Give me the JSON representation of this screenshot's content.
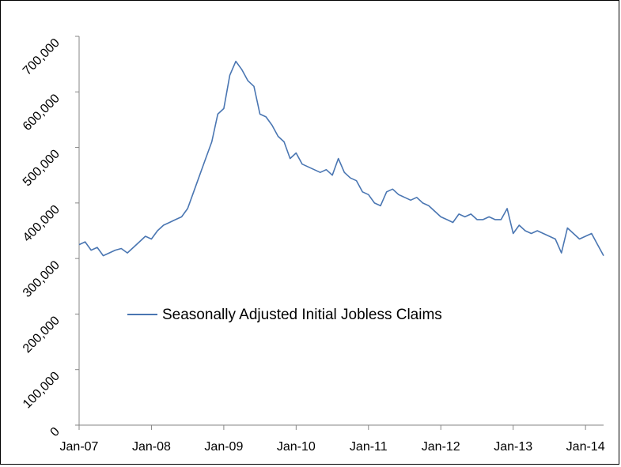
{
  "chart_data": {
    "type": "line",
    "title": "",
    "xlabel": "",
    "ylabel": "",
    "ylim": [
      0,
      700000
    ],
    "xlim": [
      "2007-01",
      "2014-04"
    ],
    "y_ticks": [
      0,
      100000,
      200000,
      300000,
      400000,
      500000,
      600000,
      700000
    ],
    "y_tick_labels": [
      "0",
      "100,000",
      "200,000",
      "300,000",
      "400,000",
      "500,000",
      "600,000",
      "700,000"
    ],
    "x_tick_labels": [
      "Jan-07",
      "Jan-08",
      "Jan-09",
      "Jan-10",
      "Jan-11",
      "Jan-12",
      "Jan-13",
      "Jan-14"
    ],
    "grid": false,
    "legend_position": "center-left",
    "series": [
      {
        "name": "Seasonally Adjusted Initial Jobless Claims",
        "color": "#4a76b2",
        "x": [
          "2007-01",
          "2007-02",
          "2007-03",
          "2007-04",
          "2007-05",
          "2007-06",
          "2007-07",
          "2007-08",
          "2007-09",
          "2007-10",
          "2007-11",
          "2007-12",
          "2008-01",
          "2008-02",
          "2008-03",
          "2008-04",
          "2008-05",
          "2008-06",
          "2008-07",
          "2008-08",
          "2008-09",
          "2008-10",
          "2008-11",
          "2008-12",
          "2009-01",
          "2009-02",
          "2009-03",
          "2009-04",
          "2009-05",
          "2009-06",
          "2009-07",
          "2009-08",
          "2009-09",
          "2009-10",
          "2009-11",
          "2009-12",
          "2010-01",
          "2010-02",
          "2010-03",
          "2010-04",
          "2010-05",
          "2010-06",
          "2010-07",
          "2010-08",
          "2010-09",
          "2010-10",
          "2010-11",
          "2010-12",
          "2011-01",
          "2011-02",
          "2011-03",
          "2011-04",
          "2011-05",
          "2011-06",
          "2011-07",
          "2011-08",
          "2011-09",
          "2011-10",
          "2011-11",
          "2011-12",
          "2012-01",
          "2012-02",
          "2012-03",
          "2012-04",
          "2012-05",
          "2012-06",
          "2012-07",
          "2012-08",
          "2012-09",
          "2012-10",
          "2012-11",
          "2012-12",
          "2013-01",
          "2013-02",
          "2013-03",
          "2013-04",
          "2013-05",
          "2013-06",
          "2013-07",
          "2013-08",
          "2013-09",
          "2013-10",
          "2013-11",
          "2013-12",
          "2014-01",
          "2014-02",
          "2014-03",
          "2014-04"
        ],
        "values": [
          325000,
          330000,
          315000,
          320000,
          305000,
          310000,
          315000,
          318000,
          310000,
          320000,
          330000,
          340000,
          335000,
          350000,
          360000,
          365000,
          370000,
          375000,
          390000,
          420000,
          450000,
          480000,
          510000,
          560000,
          570000,
          630000,
          655000,
          640000,
          620000,
          610000,
          560000,
          555000,
          540000,
          520000,
          510000,
          480000,
          490000,
          470000,
          465000,
          460000,
          455000,
          460000,
          450000,
          480000,
          455000,
          445000,
          440000,
          420000,
          415000,
          400000,
          395000,
          420000,
          425000,
          415000,
          410000,
          405000,
          410000,
          400000,
          395000,
          385000,
          375000,
          370000,
          365000,
          380000,
          375000,
          380000,
          370000,
          370000,
          375000,
          370000,
          370000,
          390000,
          345000,
          360000,
          350000,
          345000,
          350000,
          345000,
          340000,
          335000,
          310000,
          355000,
          345000,
          335000,
          340000,
          345000,
          325000,
          305000
        ]
      }
    ]
  }
}
